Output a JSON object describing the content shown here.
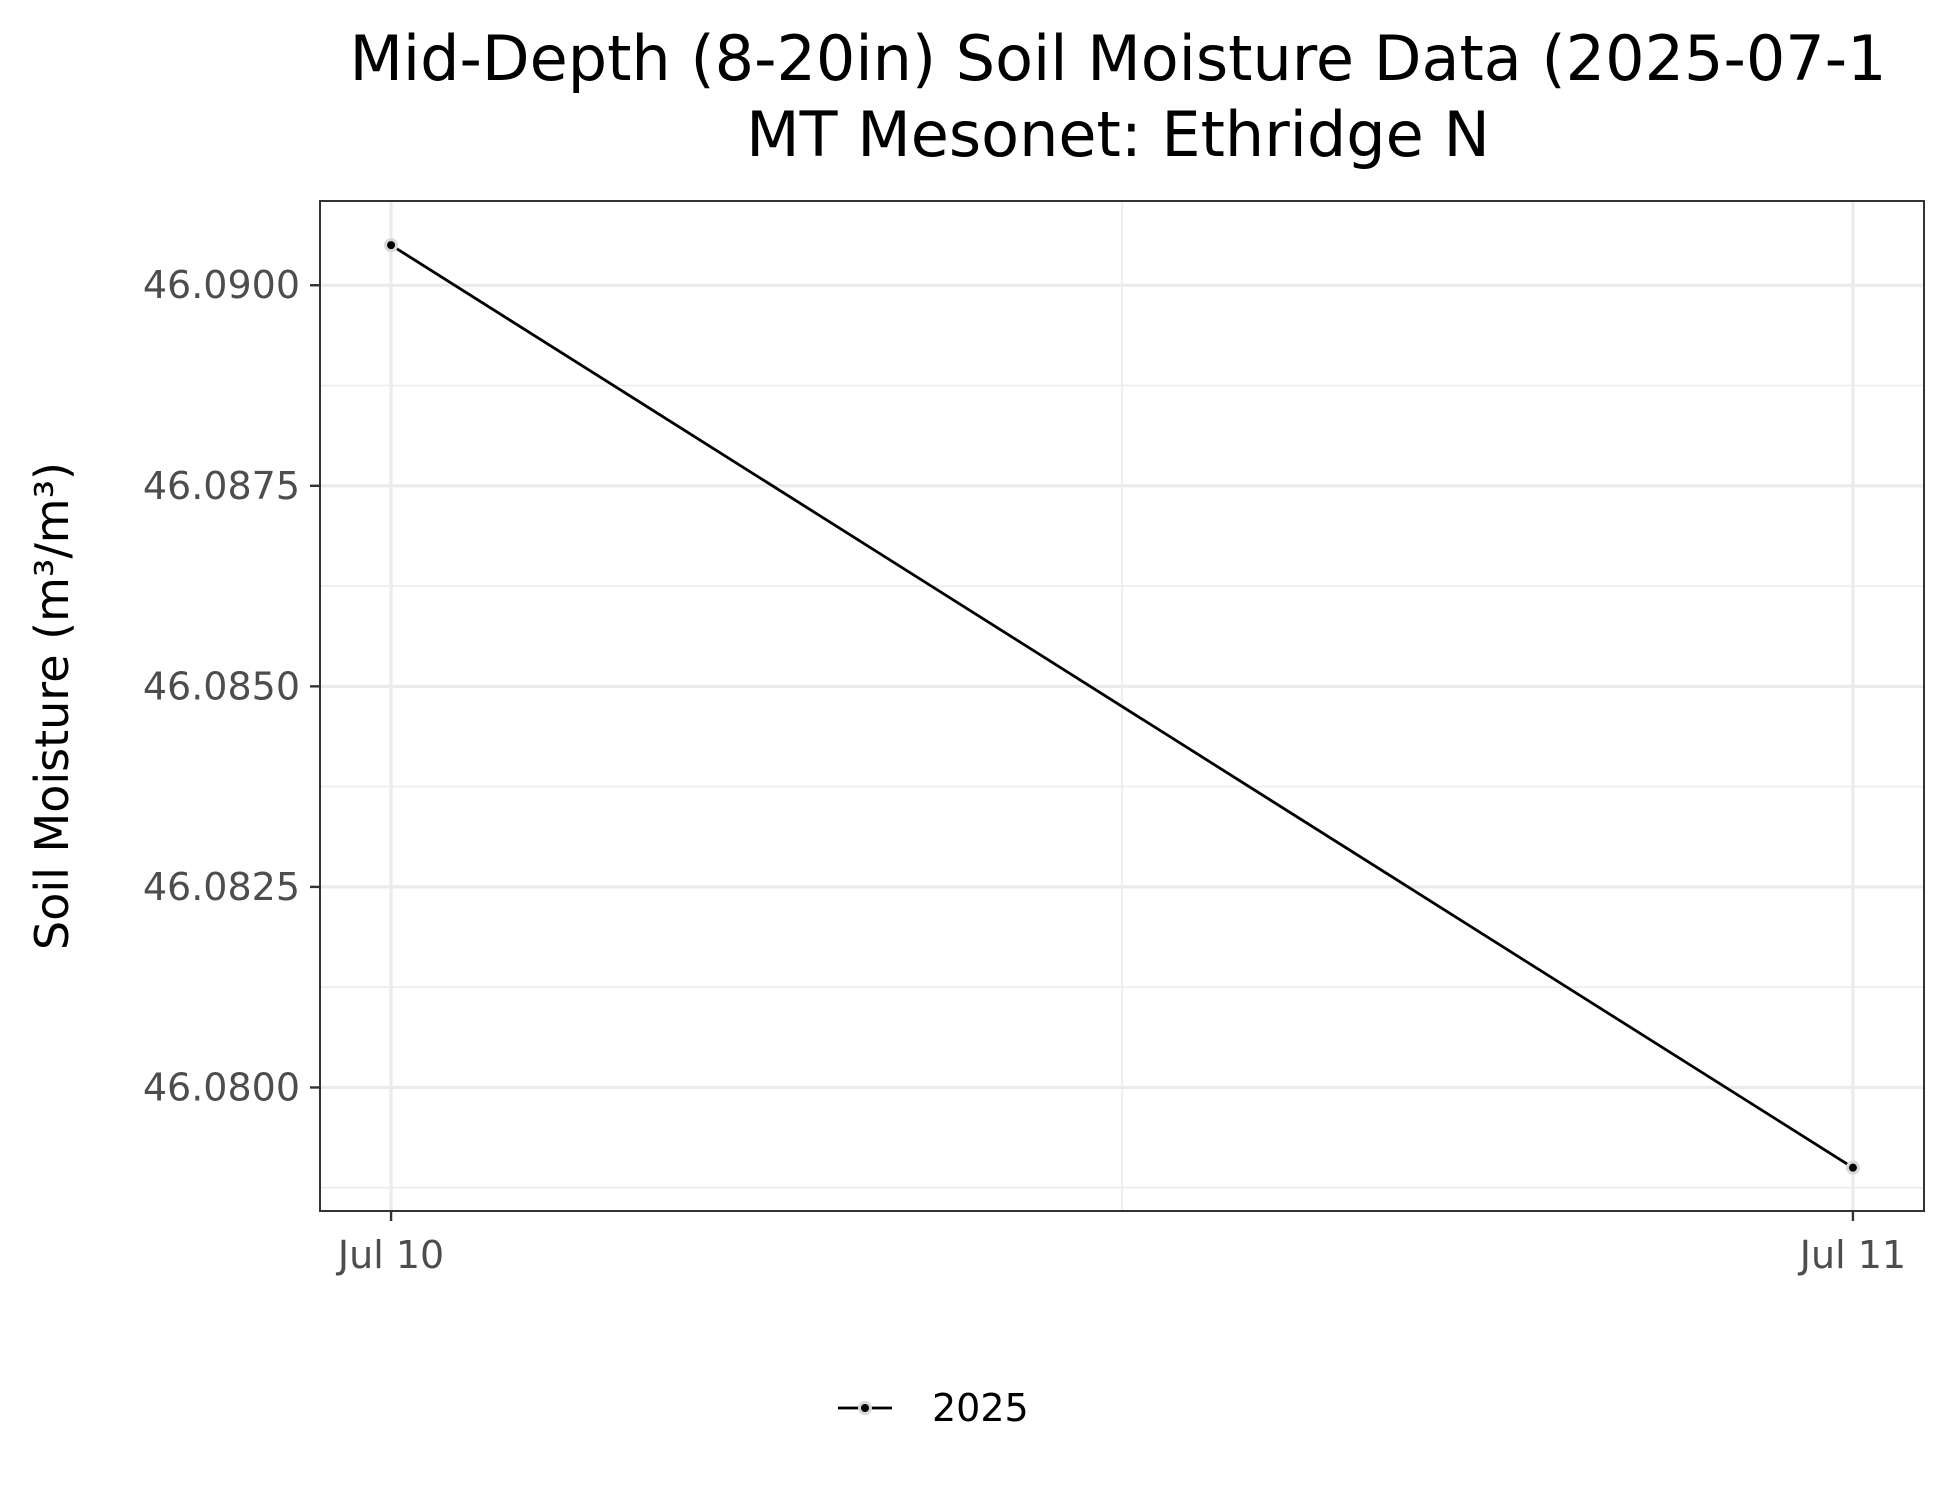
{
  "chart_data": {
    "type": "line",
    "title": "Mid-Depth (8-20in) Soil Moisture Data (2025-07-1",
    "subtitle": "MT Mesonet: Ethridge N",
    "xlabel": "",
    "ylabel": "Soil Moisture (m³/m³)",
    "x_ticks": [
      {
        "value": "2025-07-10",
        "label": "Jul 10"
      },
      {
        "value": "2025-07-11",
        "label": "Jul 11"
      }
    ],
    "y_ticks": [
      46.08,
      46.0825,
      46.085,
      46.0875,
      46.09
    ],
    "y_tick_labels": [
      "46.0800",
      "46.0825",
      "46.0850",
      "46.0875",
      "46.0900"
    ],
    "xlim": [
      "2025-07-09T22:50",
      "2025-07-11T01:10"
    ],
    "ylim": [
      46.07846,
      46.09105
    ],
    "grid": true,
    "legend_position": "bottom",
    "series": [
      {
        "name": "2025",
        "color": "#000000",
        "x": [
          "2025-07-10",
          "2025-07-11"
        ],
        "values": [
          46.0905,
          46.079
        ]
      }
    ]
  }
}
